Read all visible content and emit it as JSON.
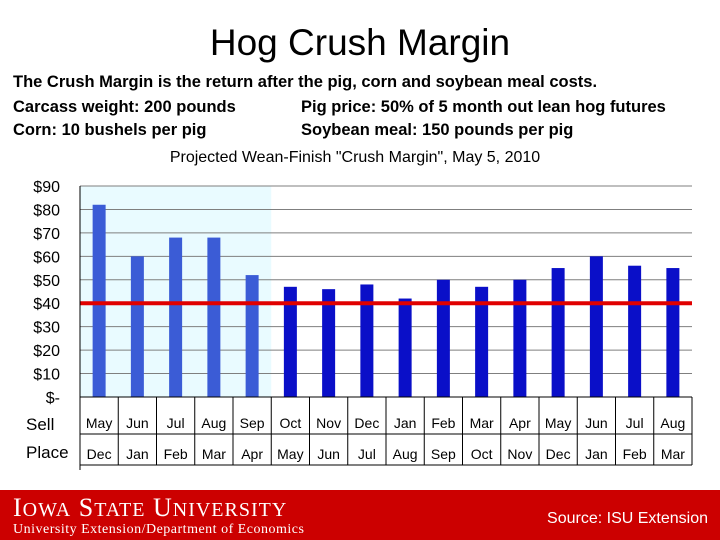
{
  "slide": {
    "title": "Hog Crush Margin",
    "line1": "The Crush Margin is the return after the pig, corn and soybean meal costs.",
    "line2a": "Carcass weight:  200 pounds",
    "line2b": "Pig price:  50% of 5 month out lean hog futures",
    "line3a": "Corn:  10 bushels per pig",
    "line3b": "Soybean meal:  150 pounds per pig"
  },
  "footer": {
    "logo_word1_initial": "I",
    "logo_word1_rest": "OWA",
    "logo_word2_initial": "S",
    "logo_word2_rest": "TATE",
    "logo_word3_initial": "U",
    "logo_word3_rest": "NIVERSITY",
    "department": "University Extension/Department of Economics",
    "source": "Source: ISU Extension"
  },
  "colors": {
    "footer_red": "#cc0000",
    "bar_light": "#3b5cd6",
    "bar_dark": "#0a0fc8",
    "shade": "#e9fbff",
    "breakeven_line": "#e00000"
  },
  "chart_data": {
    "type": "bar",
    "title": "Projected Wean-Finish \"Crush Margin\", May 5, 2010",
    "y_tick_labels": [
      "$-",
      "$10",
      "$20",
      "$30",
      "$40",
      "$50",
      "$60",
      "$70",
      "$80",
      "$90"
    ],
    "ylim": [
      0,
      90
    ],
    "row_labels": [
      "Sell",
      "Place"
    ],
    "sell_months": [
      "May",
      "Jun",
      "Jul",
      "Aug",
      "Sep",
      "Oct",
      "Nov",
      "Dec",
      "Jan",
      "Feb",
      "Mar",
      "Apr",
      "May",
      "Jun",
      "Jul",
      "Aug"
    ],
    "place_months": [
      "Dec",
      "Jan",
      "Feb",
      "Mar",
      "Apr",
      "May",
      "Jun",
      "Jul",
      "Aug",
      "Sep",
      "Oct",
      "Nov",
      "Dec",
      "Jan",
      "Feb",
      "Mar"
    ],
    "values": [
      82,
      60,
      68,
      68,
      52,
      47,
      46,
      48,
      42,
      50,
      47,
      50,
      55,
      60,
      56,
      55
    ],
    "realized_count": 5,
    "reference_line": 40,
    "grid": true
  }
}
